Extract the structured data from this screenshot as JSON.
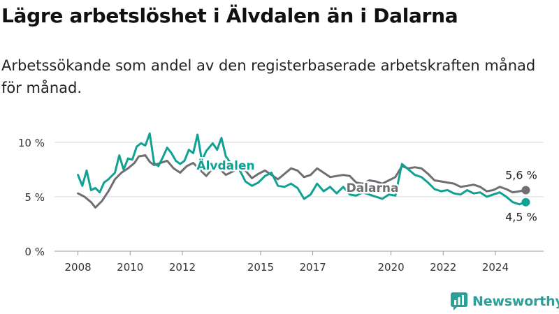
{
  "title": "Lägre arbetslöshet i Älvdalen än i Dalarna",
  "subtitle": "Arbetssökande som andel av den registerbaserade arbetskraften månad för månad.",
  "brand": {
    "name": "Newsworthy",
    "icon": "bar-chart-speech-bubble-icon",
    "color": "#2aa198"
  },
  "chart_data": {
    "type": "line",
    "title": "Lägre arbetslöshet i Älvdalen än i Dalarna",
    "subtitle": "Arbetssökande som andel av den registerbaserade arbetskraften månad för månad.",
    "xlabel": "",
    "ylabel": "",
    "x_ticks": [
      2008,
      2010,
      2012,
      2015,
      2017,
      2020,
      2022,
      2024
    ],
    "y_ticks": [
      0,
      5,
      10
    ],
    "y_tick_labels": [
      "0 %",
      "5 %",
      "10 %"
    ],
    "xlim": [
      2007.1,
      2025.85
    ],
    "ylim": [
      0,
      10.5
    ],
    "grid": true,
    "legend": "inline labels",
    "series": [
      {
        "name": "Dalarna",
        "color": "#6e6e73",
        "end_label": "5,6 %",
        "points": [
          [
            "2008-01",
            5.3
          ],
          [
            "2008-04",
            5.0
          ],
          [
            "2008-07",
            4.5
          ],
          [
            "2008-09",
            4.0
          ],
          [
            "2008-12",
            4.6
          ],
          [
            "2009-03",
            5.5
          ],
          [
            "2009-06",
            6.6
          ],
          [
            "2009-09",
            7.2
          ],
          [
            "2009-12",
            7.6
          ],
          [
            "2010-03",
            8.1
          ],
          [
            "2010-05",
            8.7
          ],
          [
            "2010-08",
            8.8
          ],
          [
            "2010-10",
            8.2
          ],
          [
            "2010-12",
            7.9
          ],
          [
            "2011-03",
            8.1
          ],
          [
            "2011-06",
            8.3
          ],
          [
            "2011-09",
            7.6
          ],
          [
            "2011-12",
            7.2
          ],
          [
            "2012-03",
            7.8
          ],
          [
            "2012-06",
            8.1
          ],
          [
            "2012-09",
            7.5
          ],
          [
            "2012-12",
            6.9
          ],
          [
            "2013-03",
            7.6
          ],
          [
            "2013-06",
            7.6
          ],
          [
            "2013-09",
            7.0
          ],
          [
            "2013-12",
            7.3
          ],
          [
            "2014-03",
            7.6
          ],
          [
            "2014-06",
            7.4
          ],
          [
            "2014-09",
            6.7
          ],
          [
            "2014-12",
            7.1
          ],
          [
            "2015-03",
            7.4
          ],
          [
            "2015-06",
            7.0
          ],
          [
            "2015-09",
            6.6
          ],
          [
            "2015-12",
            7.1
          ],
          [
            "2016-03",
            7.6
          ],
          [
            "2016-06",
            7.4
          ],
          [
            "2016-09",
            6.8
          ],
          [
            "2016-12",
            7.0
          ],
          [
            "2017-03",
            7.6
          ],
          [
            "2017-06",
            7.2
          ],
          [
            "2017-09",
            6.8
          ],
          [
            "2017-12",
            6.9
          ],
          [
            "2018-03",
            7.0
          ],
          [
            "2018-06",
            6.9
          ],
          [
            "2018-09",
            6.3
          ],
          [
            "2018-12",
            6.2
          ],
          [
            "2019-03",
            6.5
          ],
          [
            "2019-06",
            6.4
          ],
          [
            "2019-09",
            6.2
          ],
          [
            "2019-12",
            6.5
          ],
          [
            "2020-03",
            6.8
          ],
          [
            "2020-06",
            7.8
          ],
          [
            "2020-09",
            7.6
          ],
          [
            "2020-12",
            7.7
          ],
          [
            "2021-03",
            7.6
          ],
          [
            "2021-06",
            7.1
          ],
          [
            "2021-09",
            6.5
          ],
          [
            "2021-12",
            6.4
          ],
          [
            "2022-03",
            6.3
          ],
          [
            "2022-06",
            6.2
          ],
          [
            "2022-09",
            5.9
          ],
          [
            "2022-12",
            6.0
          ],
          [
            "2023-03",
            6.1
          ],
          [
            "2023-06",
            5.9
          ],
          [
            "2023-09",
            5.5
          ],
          [
            "2023-12",
            5.6
          ],
          [
            "2024-03",
            5.9
          ],
          [
            "2024-06",
            5.7
          ],
          [
            "2024-09",
            5.4
          ],
          [
            "2024-12",
            5.5
          ],
          [
            "2025-03",
            5.6
          ]
        ]
      },
      {
        "name": "Älvdalen",
        "color": "#10a193",
        "end_label": "4,5 %",
        "points": [
          [
            "2008-01",
            7.0
          ],
          [
            "2008-03",
            6.0
          ],
          [
            "2008-05",
            7.4
          ],
          [
            "2008-07",
            5.6
          ],
          [
            "2008-09",
            5.8
          ],
          [
            "2008-11",
            5.4
          ],
          [
            "2009-01",
            6.3
          ],
          [
            "2009-03",
            6.6
          ],
          [
            "2009-06",
            7.2
          ],
          [
            "2009-08",
            8.8
          ],
          [
            "2009-10",
            7.5
          ],
          [
            "2009-12",
            8.5
          ],
          [
            "2010-02",
            8.4
          ],
          [
            "2010-04",
            9.6
          ],
          [
            "2010-06",
            9.9
          ],
          [
            "2010-08",
            9.7
          ],
          [
            "2010-10",
            10.8
          ],
          [
            "2010-12",
            8.1
          ],
          [
            "2011-02",
            7.8
          ],
          [
            "2011-04",
            8.6
          ],
          [
            "2011-06",
            9.5
          ],
          [
            "2011-08",
            9.0
          ],
          [
            "2011-10",
            8.3
          ],
          [
            "2011-12",
            8.0
          ],
          [
            "2012-02",
            8.3
          ],
          [
            "2012-04",
            9.3
          ],
          [
            "2012-06",
            9.0
          ],
          [
            "2012-08",
            10.7
          ],
          [
            "2012-10",
            8.3
          ],
          [
            "2012-12",
            9.2
          ],
          [
            "2013-03",
            9.9
          ],
          [
            "2013-05",
            9.3
          ],
          [
            "2013-07",
            10.4
          ],
          [
            "2013-09",
            8.7
          ],
          [
            "2013-12",
            7.9
          ],
          [
            "2014-03",
            7.6
          ],
          [
            "2014-06",
            6.4
          ],
          [
            "2014-09",
            6.0
          ],
          [
            "2014-12",
            6.3
          ],
          [
            "2015-03",
            6.9
          ],
          [
            "2015-06",
            7.2
          ],
          [
            "2015-09",
            6.0
          ],
          [
            "2015-12",
            5.9
          ],
          [
            "2016-03",
            6.2
          ],
          [
            "2016-06",
            5.8
          ],
          [
            "2016-09",
            4.8
          ],
          [
            "2016-12",
            5.2
          ],
          [
            "2017-03",
            6.2
          ],
          [
            "2017-06",
            5.5
          ],
          [
            "2017-09",
            5.9
          ],
          [
            "2017-12",
            5.3
          ],
          [
            "2018-03",
            5.9
          ],
          [
            "2018-06",
            5.2
          ],
          [
            "2018-09",
            5.1
          ],
          [
            "2018-12",
            5.4
          ],
          [
            "2019-03",
            5.2
          ],
          [
            "2019-06",
            5.0
          ],
          [
            "2019-09",
            4.8
          ],
          [
            "2019-12",
            5.2
          ],
          [
            "2020-03",
            5.1
          ],
          [
            "2020-06",
            8.0
          ],
          [
            "2020-09",
            7.5
          ],
          [
            "2020-12",
            7.0
          ],
          [
            "2021-03",
            6.8
          ],
          [
            "2021-06",
            6.3
          ],
          [
            "2021-09",
            5.7
          ],
          [
            "2021-12",
            5.5
          ],
          [
            "2022-03",
            5.6
          ],
          [
            "2022-06",
            5.3
          ],
          [
            "2022-09",
            5.2
          ],
          [
            "2022-12",
            5.6
          ],
          [
            "2023-03",
            5.3
          ],
          [
            "2023-06",
            5.4
          ],
          [
            "2023-09",
            5.0
          ],
          [
            "2023-12",
            5.2
          ],
          [
            "2024-03",
            5.4
          ],
          [
            "2024-06",
            5.0
          ],
          [
            "2024-09",
            4.5
          ],
          [
            "2024-12",
            4.3
          ],
          [
            "2025-03",
            4.5
          ]
        ]
      }
    ]
  }
}
